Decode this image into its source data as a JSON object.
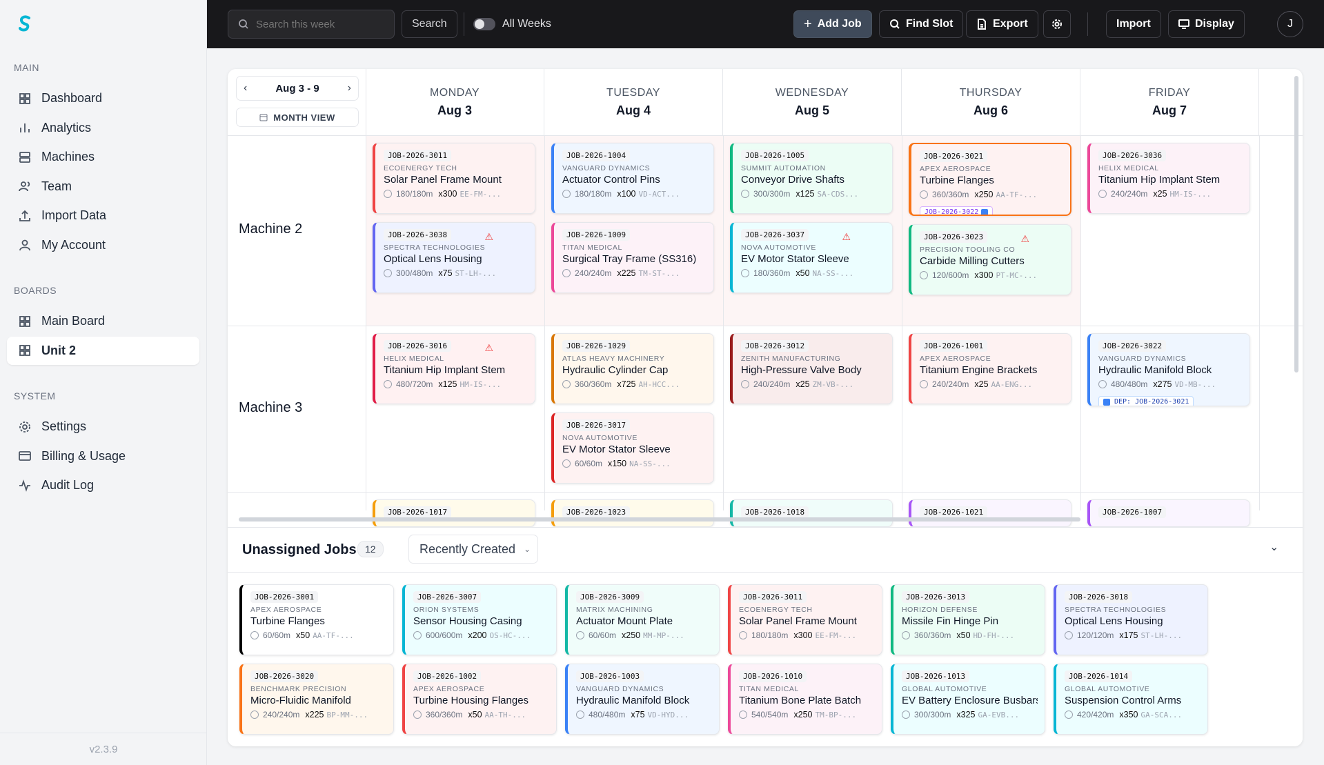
{
  "app": {
    "version": "v2.3.9"
  },
  "sidebar": {
    "sections": [
      {
        "label": "MAIN",
        "items": [
          {
            "label": "Dashboard",
            "icon": "grid-icon"
          },
          {
            "label": "Analytics",
            "icon": "bar-chart-icon"
          },
          {
            "label": "Machines",
            "icon": "server-icon"
          },
          {
            "label": "Team",
            "icon": "users-icon"
          },
          {
            "label": "Import Data",
            "icon": "upload-icon"
          },
          {
            "label": "My Account",
            "icon": "user-icon"
          }
        ]
      },
      {
        "label": "BOARDS",
        "items": [
          {
            "label": "Main Board",
            "icon": "grid-icon"
          },
          {
            "label": "Unit 2",
            "icon": "grid-icon",
            "active": true
          }
        ]
      },
      {
        "label": "SYSTEM",
        "items": [
          {
            "label": "Settings",
            "icon": "gear-icon"
          },
          {
            "label": "Billing & Usage",
            "icon": "credit-card-icon"
          },
          {
            "label": "Audit Log",
            "icon": "activity-icon"
          }
        ]
      }
    ]
  },
  "topbar": {
    "search_placeholder": "Search this week",
    "search_button": "Search",
    "all_weeks_label": "All Weeks",
    "all_weeks_on": false,
    "add_job": "Add Job",
    "find_slot": "Find Slot",
    "export": "Export",
    "import": "Import",
    "display": "Display",
    "avatar": "J",
    "accent": "#3f4a5a"
  },
  "week": {
    "range": "Aug 3 - 9",
    "month_view": "MONTH VIEW"
  },
  "days": [
    {
      "name": "MONDAY",
      "date": "Aug 3"
    },
    {
      "name": "TUESDAY",
      "date": "Aug 4"
    },
    {
      "name": "WEDNESDAY",
      "date": "Aug 5"
    },
    {
      "name": "THURSDAY",
      "date": "Aug 6"
    },
    {
      "name": "FRIDAY",
      "date": "Aug 7"
    }
  ],
  "machines": [
    {
      "name": "Machine 2",
      "days": [
        [
          {
            "id": "JOB-2026-3011",
            "company": "ECOENERGY TECH",
            "title": "Solar Panel Frame Mount",
            "time": "180/180m",
            "qty": "x300",
            "sku": "EE-FM-...",
            "color": "#ef4444",
            "bg": "#fef2f2"
          },
          {
            "id": "JOB-2026-3038",
            "company": "SPECTRA TECHNOLOGIES",
            "title": "Optical Lens Housing",
            "time": "300/480m",
            "qty": "x75",
            "sku": "ST-LH-...",
            "color": "#6366f1",
            "bg": "#eef2ff",
            "warn": true
          }
        ],
        [
          {
            "id": "JOB-2026-1004",
            "company": "VANGUARD DYNAMICS",
            "title": "Actuator Control Pins",
            "time": "180/180m",
            "qty": "x100",
            "sku": "VD-ACT...",
            "color": "#3b82f6",
            "bg": "#eff6ff"
          },
          {
            "id": "JOB-2026-1009",
            "company": "TITAN MEDICAL",
            "title": "Surgical Tray Frame (SS316)",
            "time": "240/240m",
            "qty": "x225",
            "sku": "TM-ST-...",
            "color": "#ec4899",
            "bg": "#fdf2f8"
          }
        ],
        [
          {
            "id": "JOB-2026-1005",
            "company": "SUMMIT AUTOMATION",
            "title": "Conveyor Drive Shafts",
            "time": "300/300m",
            "qty": "x125",
            "sku": "SA-CDS...",
            "color": "#10b981",
            "bg": "#ecfdf5"
          },
          {
            "id": "JOB-2026-3037",
            "company": "NOVA AUTOMOTIVE",
            "title": "EV Motor Stator Sleeve",
            "time": "180/360m",
            "qty": "x50",
            "sku": "NA-SS-...",
            "color": "#06b6d4",
            "bg": "#ecfeff",
            "warn": true
          }
        ],
        [
          {
            "id": "JOB-2026-3021",
            "company": "APEX AEROSPACE",
            "title": "Turbine Flanges",
            "time": "360/360m",
            "qty": "x250",
            "sku": "AA-TF-...",
            "color": "#f97316",
            "bg": "#fef2f2",
            "selected": true,
            "link": "JOB-2026-3022"
          },
          {
            "id": "JOB-2026-3023",
            "company": "PRECISION TOOLING CO",
            "title": "Carbide Milling Cutters",
            "time": "120/600m",
            "qty": "x300",
            "sku": "PT-MC-...",
            "color": "#10b981",
            "bg": "#ecfdf5",
            "warn": true
          }
        ],
        [
          {
            "id": "JOB-2026-3036",
            "company": "HELIX MEDICAL",
            "title": "Titanium Hip Implant Stem",
            "time": "240/240m",
            "qty": "x25",
            "sku": "HM-IS-...",
            "color": "#ec4899",
            "bg": "#fdf2f8"
          }
        ]
      ]
    },
    {
      "name": "Machine 3",
      "days": [
        [
          {
            "id": "JOB-2026-3016",
            "company": "HELIX MEDICAL",
            "title": "Titanium Hip Implant Stem",
            "time": "480/720m",
            "qty": "x125",
            "sku": "HM-IS-...",
            "color": "#e11d48",
            "bg": "#fff1f2",
            "warn": true
          }
        ],
        [
          {
            "id": "JOB-2026-1029",
            "company": "ATLAS HEAVY MACHINERY",
            "title": "Hydraulic Cylinder Cap",
            "time": "360/360m",
            "qty": "x725",
            "sku": "AH-HCC...",
            "color": "#d97706",
            "bg": "#fff7ed"
          },
          {
            "id": "JOB-2026-3017",
            "company": "NOVA AUTOMOTIVE",
            "title": "EV Motor Stator Sleeve",
            "time": "60/60m",
            "qty": "x150",
            "sku": "NA-SS-...",
            "color": "#dc2626",
            "bg": "#fef2f2"
          }
        ],
        [
          {
            "id": "JOB-2026-3012",
            "company": "ZENITH MANUFACTURING",
            "title": "High-Pressure Valve Body",
            "time": "240/240m",
            "qty": "x25",
            "sku": "ZM-VB-...",
            "color": "#991b1b",
            "bg": "#f9ecec"
          }
        ],
        [
          {
            "id": "JOB-2026-1001",
            "company": "APEX AEROSPACE",
            "title": "Titanium Engine Brackets",
            "time": "240/240m",
            "qty": "x25",
            "sku": "AA-ENG...",
            "color": "#ef4444",
            "bg": "#fef2f2"
          }
        ],
        [
          {
            "id": "JOB-2026-3022",
            "company": "VANGUARD DYNAMICS",
            "title": "Hydraulic Manifold Block",
            "time": "480/480m",
            "qty": "x275",
            "sku": "VD-MB-...",
            "color": "#3b82f6",
            "bg": "#eff6ff",
            "dep": "DEP: JOB-2026-3021"
          }
        ]
      ]
    },
    {
      "name": "",
      "days": [
        [
          {
            "id": "JOB-2026-1017",
            "color": "#f59e0b",
            "bg": "#fffbeb"
          }
        ],
        [
          {
            "id": "JOB-2026-1023",
            "color": "#f59e0b",
            "bg": "#fffbeb"
          }
        ],
        [
          {
            "id": "JOB-2026-1018",
            "color": "#14b8a6",
            "bg": "#f0fdfa"
          }
        ],
        [
          {
            "id": "JOB-2026-1021",
            "color": "#a855f7",
            "bg": "#faf5ff"
          }
        ],
        [
          {
            "id": "JOB-2026-1007",
            "color": "#a855f7",
            "bg": "#faf5ff"
          }
        ]
      ]
    }
  ],
  "unassigned": {
    "title": "Unassigned Jobs",
    "count": "12",
    "sort": "Recently Created",
    "jobs": [
      {
        "id": "JOB-2026-3001",
        "company": "APEX AEROSPACE",
        "title": "Turbine Flanges",
        "time": "60/60m",
        "qty": "x50",
        "sku": "AA-TF-...",
        "color": "#000000",
        "bg": "#ffffff"
      },
      {
        "id": "JOB-2026-3007",
        "company": "ORION SYSTEMS",
        "title": "Sensor Housing Casing",
        "time": "600/600m",
        "qty": "x200",
        "sku": "OS-HC-...",
        "color": "#06b6d4",
        "bg": "#ecfeff"
      },
      {
        "id": "JOB-2026-3009",
        "company": "MATRIX MACHINING",
        "title": "Actuator Mount Plate",
        "time": "60/60m",
        "qty": "x250",
        "sku": "MM-MP-...",
        "color": "#14b8a6",
        "bg": "#f0fdfa"
      },
      {
        "id": "JOB-2026-3011",
        "company": "ECOENERGY TECH",
        "title": "Solar Panel Frame Mount",
        "time": "180/180m",
        "qty": "x300",
        "sku": "EE-FM-...",
        "color": "#ef4444",
        "bg": "#fef2f2"
      },
      {
        "id": "JOB-2026-3013",
        "company": "HORIZON DEFENSE",
        "title": "Missile Fin Hinge Pin",
        "time": "360/360m",
        "qty": "x50",
        "sku": "HD-FH-...",
        "color": "#10b981",
        "bg": "#ecfdf5"
      },
      {
        "id": "JOB-2026-3018",
        "company": "SPECTRA TECHNOLOGIES",
        "title": "Optical Lens Housing",
        "time": "120/120m",
        "qty": "x175",
        "sku": "ST-LH-...",
        "color": "#6366f1",
        "bg": "#eef2ff"
      },
      {
        "id": "JOB-2026-3020",
        "company": "BENCHMARK PRECISION",
        "title": "Micro-Fluidic Manifold",
        "time": "240/240m",
        "qty": "x225",
        "sku": "BP-MM-...",
        "color": "#f97316",
        "bg": "#fff7ed"
      },
      {
        "id": "JOB-2026-1002",
        "company": "APEX AEROSPACE",
        "title": "Turbine Housing Flanges",
        "time": "360/360m",
        "qty": "x50",
        "sku": "AA-TH-...",
        "color": "#ef4444",
        "bg": "#fef2f2"
      },
      {
        "id": "JOB-2026-1003",
        "company": "VANGUARD DYNAMICS",
        "title": "Hydraulic Manifold Block",
        "time": "480/480m",
        "qty": "x75",
        "sku": "VD-HYD...",
        "color": "#3b82f6",
        "bg": "#eff6ff"
      },
      {
        "id": "JOB-2026-1010",
        "company": "TITAN MEDICAL",
        "title": "Titanium Bone Plate Batch",
        "time": "540/540m",
        "qty": "x250",
        "sku": "TM-BP-...",
        "color": "#ec4899",
        "bg": "#fdf2f8"
      },
      {
        "id": "JOB-2026-1013",
        "company": "GLOBAL AUTOMOTIVE",
        "title": "EV Battery Enclosure Busbars",
        "time": "300/300m",
        "qty": "x325",
        "sku": "GA-EVB...",
        "color": "#06b6d4",
        "bg": "#ecfeff"
      },
      {
        "id": "JOB-2026-1014",
        "company": "GLOBAL AUTOMOTIVE",
        "title": "Suspension Control Arms",
        "time": "420/420m",
        "qty": "x350",
        "sku": "GA-SCA...",
        "color": "#06b6d4",
        "bg": "#ecfeff"
      }
    ]
  }
}
